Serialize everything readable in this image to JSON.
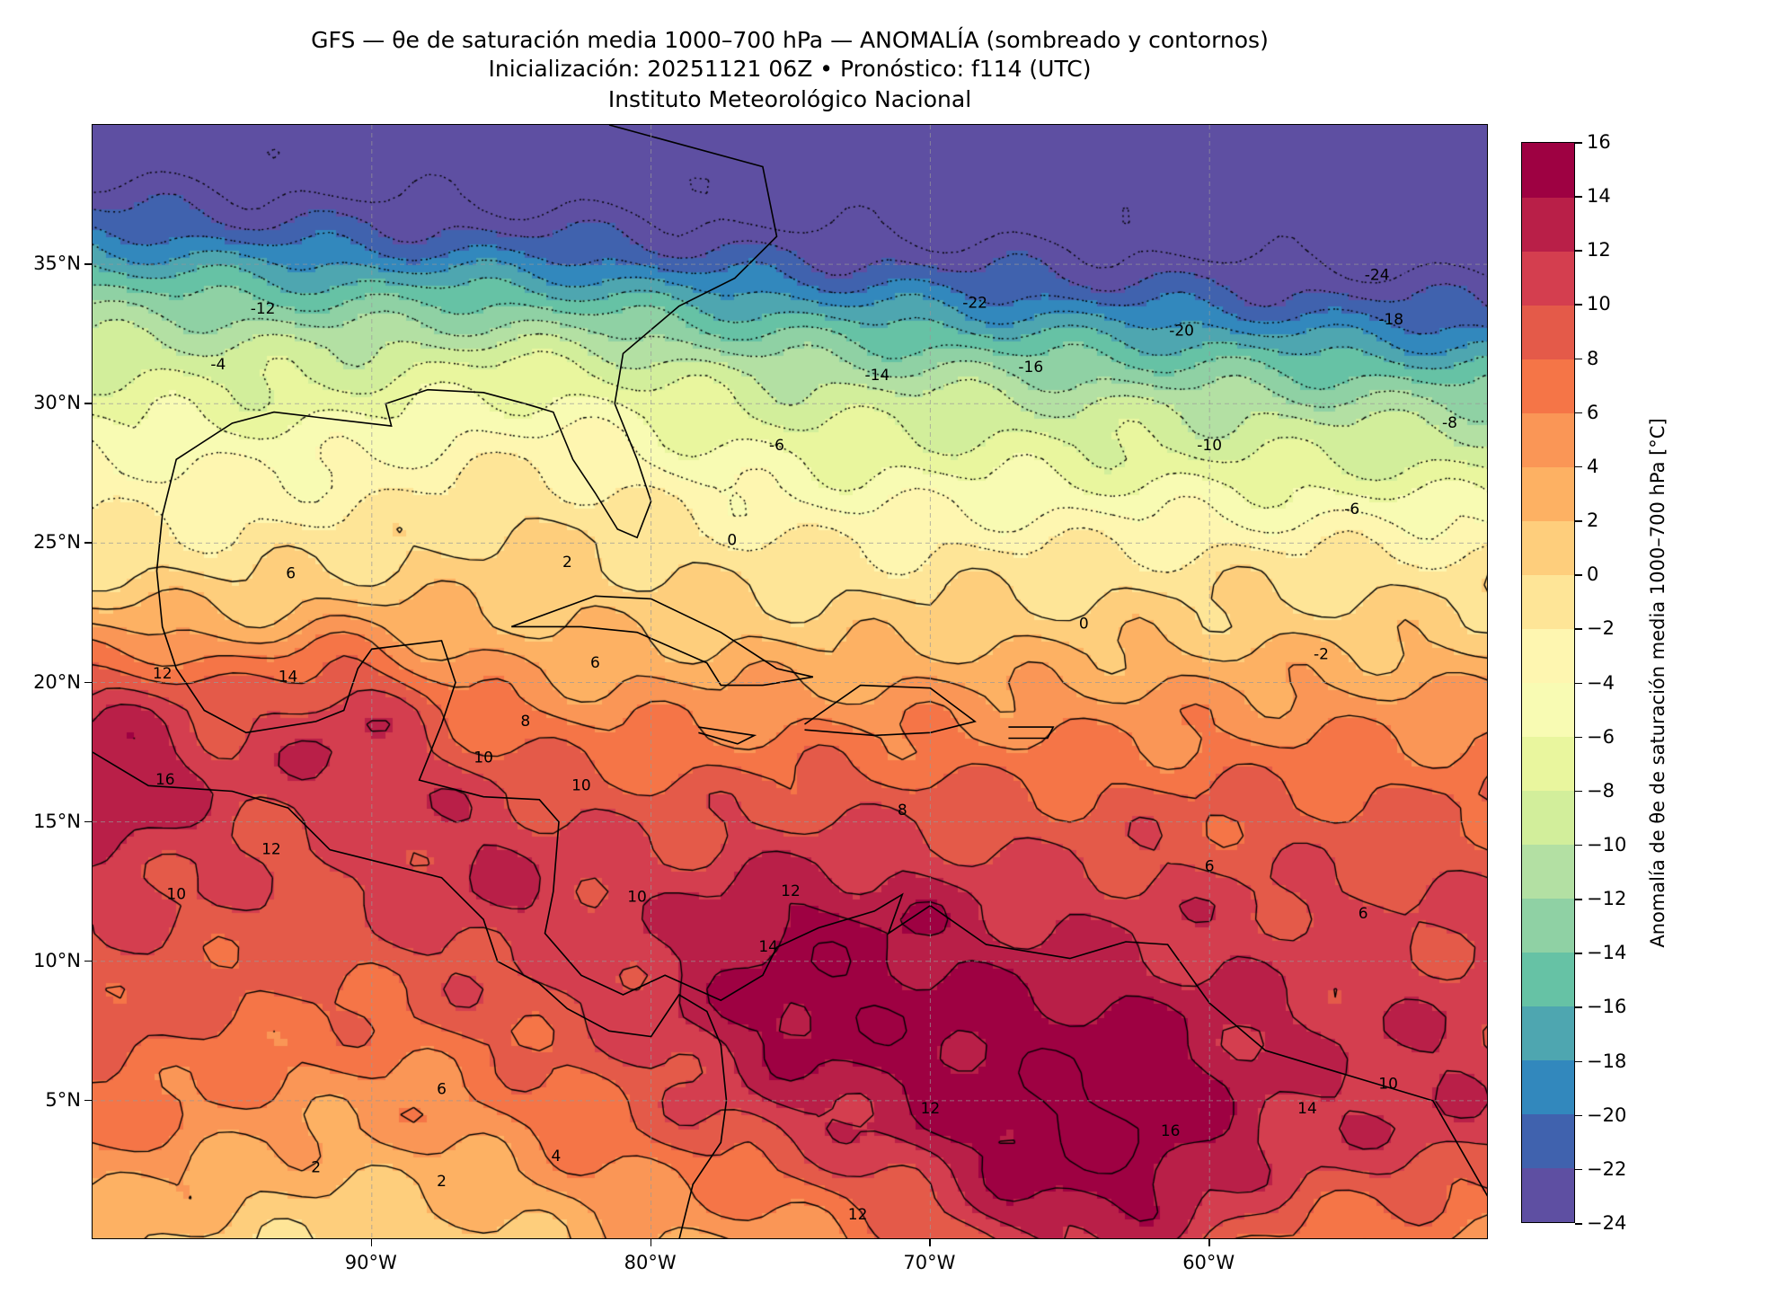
{
  "title": {
    "line1": "GFS — θe de saturación media 1000–700 hPa — ANOMALÍA (sombreado y contornos)",
    "line2": "Inicialización: 20251121 06Z   •   Pronóstico: f114 (UTC)",
    "line3": "Instituto Meteorológico Nacional"
  },
  "map": {
    "lon_range": [
      -100,
      -50
    ],
    "lat_range": [
      0,
      40
    ],
    "lat_ticks": [
      {
        "value": 35,
        "label": "35°N"
      },
      {
        "value": 30,
        "label": "30°N"
      },
      {
        "value": 25,
        "label": "25°N"
      },
      {
        "value": 20,
        "label": "20°N"
      },
      {
        "value": 15,
        "label": "15°N"
      },
      {
        "value": 10,
        "label": "10°N"
      },
      {
        "value": 5,
        "label": "5°N"
      }
    ],
    "lon_ticks": [
      {
        "value": -90,
        "label": "90°W"
      },
      {
        "value": -80,
        "label": "80°W"
      },
      {
        "value": -70,
        "label": "70°W"
      },
      {
        "value": -60,
        "label": "60°W"
      }
    ],
    "contour_labels": [
      {
        "lon": -54.0,
        "lat": 34.6,
        "text": "-24"
      },
      {
        "lon": -68.4,
        "lat": 33.6,
        "text": "-22"
      },
      {
        "lon": -61.0,
        "lat": 32.6,
        "text": "-20"
      },
      {
        "lon": -53.5,
        "lat": 33.0,
        "text": "-18"
      },
      {
        "lon": -66.4,
        "lat": 31.3,
        "text": "-16"
      },
      {
        "lon": -71.9,
        "lat": 31.0,
        "text": "-14"
      },
      {
        "lon": -93.9,
        "lat": 33.4,
        "text": "-12"
      },
      {
        "lon": -60.0,
        "lat": 28.5,
        "text": "-10"
      },
      {
        "lon": -51.4,
        "lat": 29.3,
        "text": "-8"
      },
      {
        "lon": -75.5,
        "lat": 28.5,
        "text": "-6"
      },
      {
        "lon": -54.9,
        "lat": 26.2,
        "text": "-6"
      },
      {
        "lon": -95.5,
        "lat": 31.4,
        "text": "-4"
      },
      {
        "lon": -77.1,
        "lat": 25.1,
        "text": "0"
      },
      {
        "lon": -56.0,
        "lat": 21.0,
        "text": "-2"
      },
      {
        "lon": -64.5,
        "lat": 22.1,
        "text": "0"
      },
      {
        "lon": -83.0,
        "lat": 24.3,
        "text": "2"
      },
      {
        "lon": -92.9,
        "lat": 23.9,
        "text": "6"
      },
      {
        "lon": -82.0,
        "lat": 20.7,
        "text": "6"
      },
      {
        "lon": -84.5,
        "lat": 18.6,
        "text": "8"
      },
      {
        "lon": -86.0,
        "lat": 17.3,
        "text": "10"
      },
      {
        "lon": -97.5,
        "lat": 20.3,
        "text": "12"
      },
      {
        "lon": -93.0,
        "lat": 20.2,
        "text": "14"
      },
      {
        "lon": -97.4,
        "lat": 16.5,
        "text": "16"
      },
      {
        "lon": -93.6,
        "lat": 14.0,
        "text": "12"
      },
      {
        "lon": -97.0,
        "lat": 12.4,
        "text": "10"
      },
      {
        "lon": -82.5,
        "lat": 16.3,
        "text": "10"
      },
      {
        "lon": -75.0,
        "lat": 12.5,
        "text": "12"
      },
      {
        "lon": -75.8,
        "lat": 10.5,
        "text": "14"
      },
      {
        "lon": -80.5,
        "lat": 12.3,
        "text": "10"
      },
      {
        "lon": -71.0,
        "lat": 15.4,
        "text": "8"
      },
      {
        "lon": -60.0,
        "lat": 13.4,
        "text": "6"
      },
      {
        "lon": -54.5,
        "lat": 11.7,
        "text": "6"
      },
      {
        "lon": -87.5,
        "lat": 5.4,
        "text": "6"
      },
      {
        "lon": -83.4,
        "lat": 3.0,
        "text": "4"
      },
      {
        "lon": -87.5,
        "lat": 2.1,
        "text": "2"
      },
      {
        "lon": -92.0,
        "lat": 2.6,
        "text": "2"
      },
      {
        "lon": -70.0,
        "lat": 4.7,
        "text": "12"
      },
      {
        "lon": -56.5,
        "lat": 4.7,
        "text": "14"
      },
      {
        "lon": -61.4,
        "lat": 3.9,
        "text": "16"
      },
      {
        "lon": -53.6,
        "lat": 5.6,
        "text": "10"
      },
      {
        "lon": -72.6,
        "lat": 0.9,
        "text": "12"
      }
    ]
  },
  "colorbar": {
    "label": "Anomalía de θe de saturación media 1000–700 hPa [°C]",
    "levels": [
      -24,
      -22,
      -20,
      -18,
      -16,
      -14,
      -12,
      -10,
      -8,
      -6,
      -4,
      -2,
      0,
      2,
      4,
      6,
      8,
      10,
      12,
      14,
      16
    ],
    "tick_labels": [
      "16",
      "14",
      "12",
      "10",
      "8",
      "6",
      "4",
      "2",
      "0",
      "−2",
      "−4",
      "−6",
      "−8",
      "−10",
      "−12",
      "−14",
      "−16",
      "−18",
      "−20",
      "−22",
      "−24"
    ],
    "colors": [
      "#5e4fa2",
      "#4062ae",
      "#3288bd",
      "#4ea6b0",
      "#66c2a5",
      "#8fd1a4",
      "#b3e0a3",
      "#d2ee9b",
      "#e9f69e",
      "#f8fbb3",
      "#fef6b0",
      "#fee597",
      "#fece7c",
      "#fdb163",
      "#fa9656",
      "#f57547",
      "#e45a49",
      "#d43e4f",
      "#b91f48",
      "#9e0142"
    ]
  }
}
